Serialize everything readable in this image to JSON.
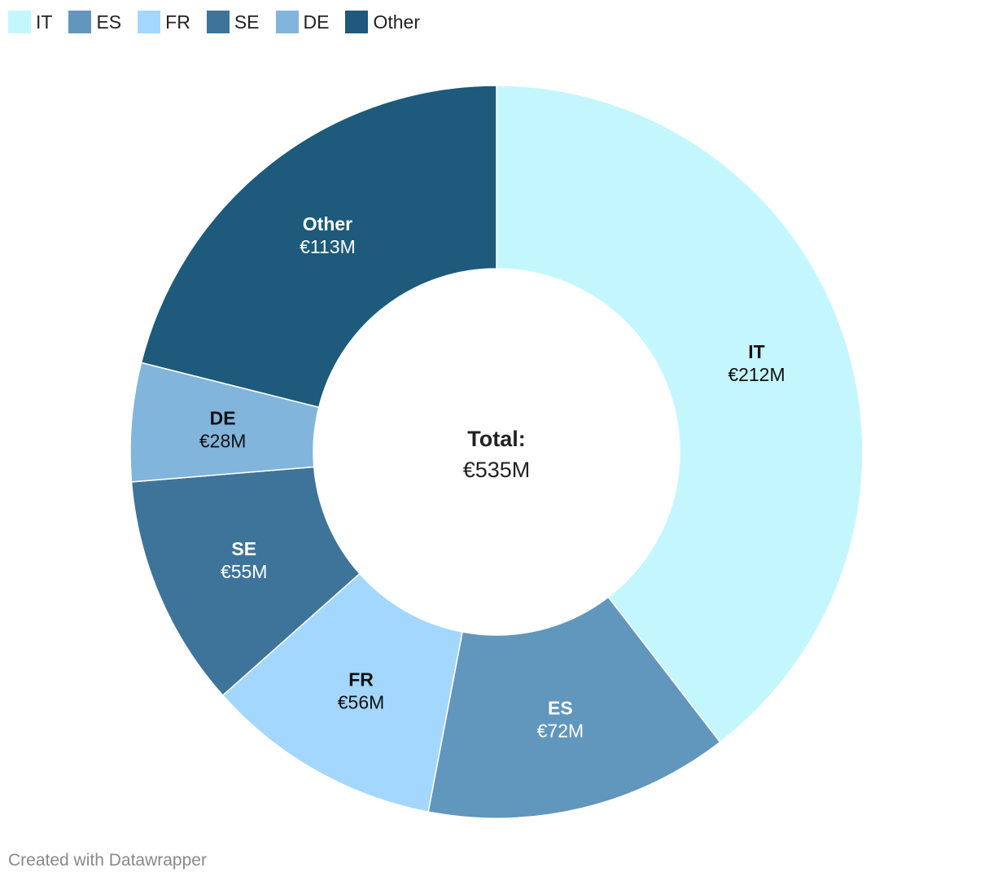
{
  "chart_data": {
    "type": "pie",
    "variant": "donut",
    "categories": [
      "IT",
      "ES",
      "FR",
      "SE",
      "DE",
      "Other"
    ],
    "values": [
      212,
      72,
      56,
      55,
      28,
      113
    ],
    "value_labels": [
      "€212M",
      "€72M",
      "€56M",
      "€55M",
      "€28M",
      "€113M"
    ],
    "colors": [
      "#c4f7fd",
      "#6196bd",
      "#a3d7fd",
      "#3e7499",
      "#82b5dc",
      "#1d5a7b"
    ],
    "label_colors": [
      "#111111",
      "#ffffff",
      "#111111",
      "#ffffff",
      "#111111",
      "#ffffff"
    ],
    "center_label": "Total:",
    "center_value": "€535M",
    "legend_position": "top-left"
  },
  "footer": {
    "credit": "Created with Datawrapper"
  }
}
